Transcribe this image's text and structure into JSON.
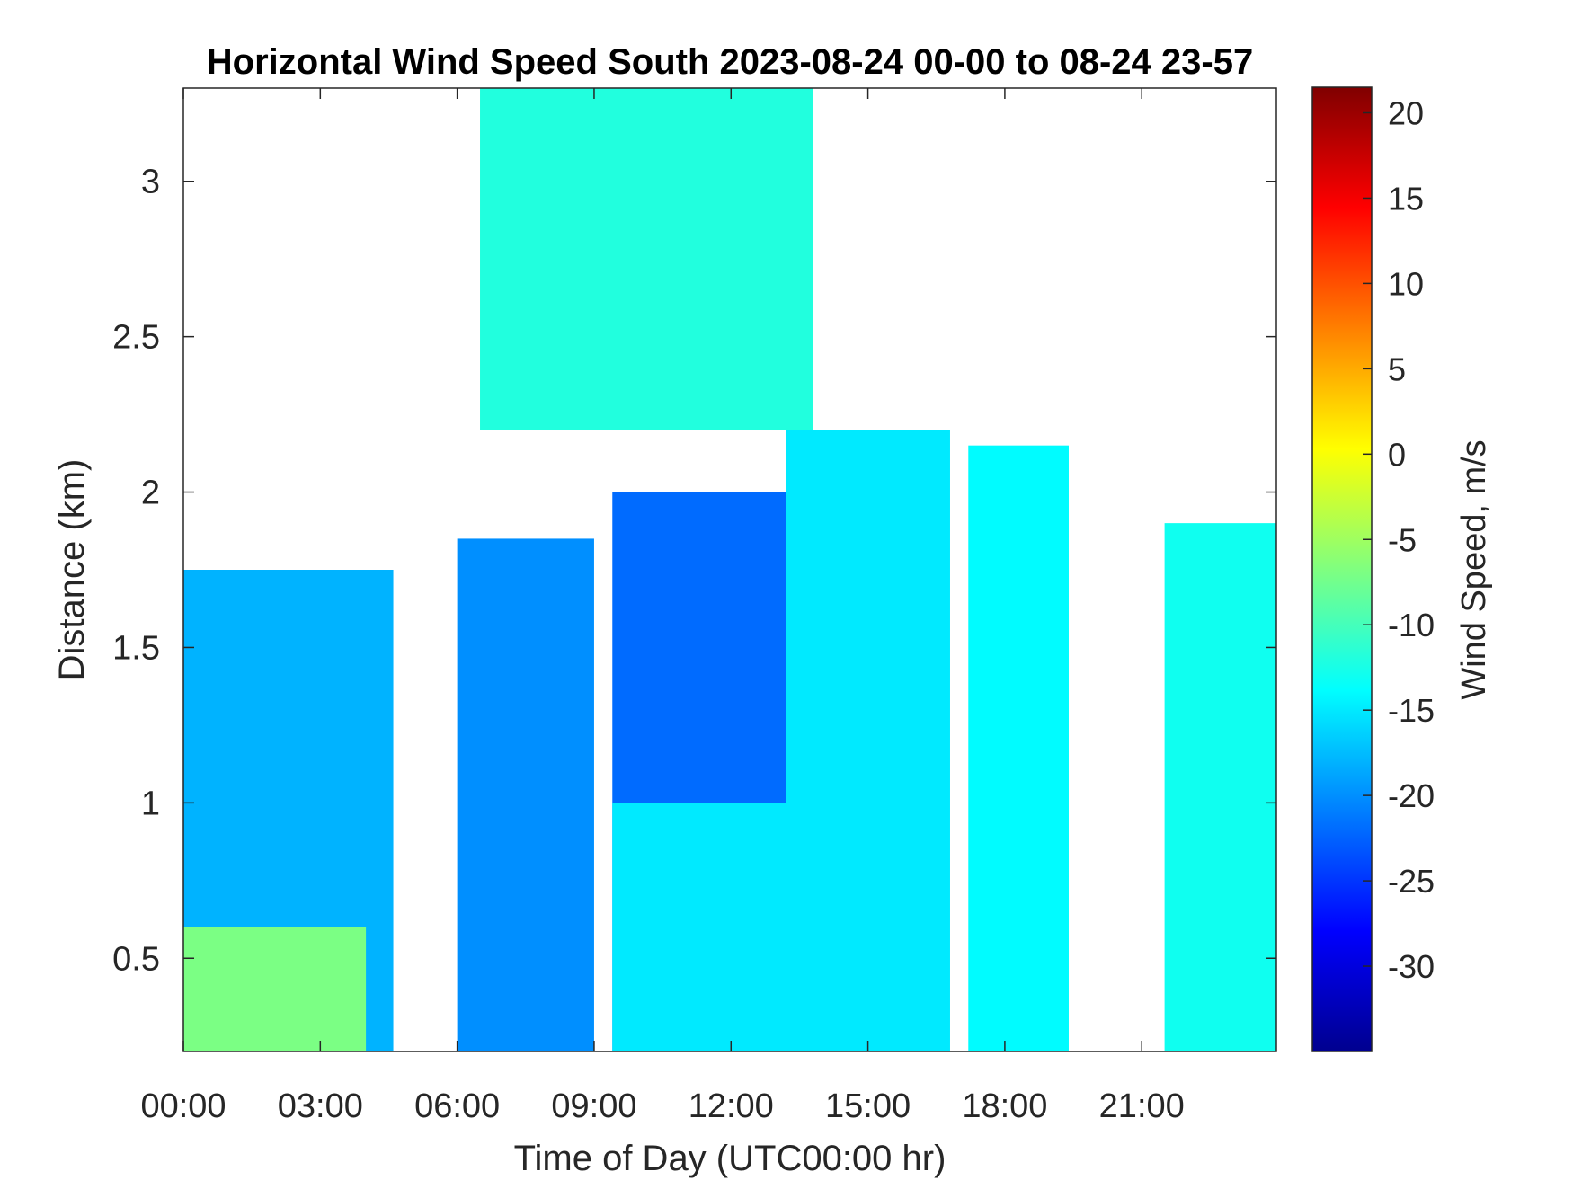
{
  "chart_data": {
    "type": "heatmap",
    "title": "Horizontal Wind Speed South 2023-08-24 00-00 to 08-24 23-57",
    "xlabel": "Time of Day (UTC00:00 hr)",
    "ylabel": "Distance (km)",
    "colorbar_label": "Wind Speed, m/s",
    "colormap": "jet",
    "x_unit": "hour of day",
    "xlim": [
      0,
      23.95
    ],
    "ylim": [
      0.2,
      3.3
    ],
    "clim": [
      -35,
      21.5
    ],
    "x_ticks": [
      {
        "value": 0,
        "label": "00:00"
      },
      {
        "value": 3,
        "label": "03:00"
      },
      {
        "value": 6,
        "label": "06:00"
      },
      {
        "value": 9,
        "label": "09:00"
      },
      {
        "value": 12,
        "label": "12:00"
      },
      {
        "value": 15,
        "label": "15:00"
      },
      {
        "value": 18,
        "label": "18:00"
      },
      {
        "value": 21,
        "label": "21:00"
      }
    ],
    "y_ticks": [
      {
        "value": 0.5,
        "label": "0.5"
      },
      {
        "value": 1,
        "label": "1"
      },
      {
        "value": 1.5,
        "label": "1.5"
      },
      {
        "value": 2,
        "label": "2"
      },
      {
        "value": 2.5,
        "label": "2.5"
      },
      {
        "value": 3,
        "label": "3"
      }
    ],
    "colorbar_ticks": [
      {
        "value": 20,
        "label": "20"
      },
      {
        "value": 15,
        "label": "15"
      },
      {
        "value": 10,
        "label": "10"
      },
      {
        "value": 5,
        "label": "5"
      },
      {
        "value": 0,
        "label": "0"
      },
      {
        "value": -5,
        "label": "-5"
      },
      {
        "value": -10,
        "label": "-10"
      },
      {
        "value": -15,
        "label": "-15"
      },
      {
        "value": -20,
        "label": "-20"
      },
      {
        "value": -25,
        "label": "-25"
      },
      {
        "value": -30,
        "label": "-30"
      }
    ],
    "regions": [
      {
        "x": [
          0.0,
          4.6
        ],
        "y": [
          0.2,
          1.75
        ],
        "value": -18
      },
      {
        "x": [
          0.0,
          4.0
        ],
        "y": [
          0.2,
          0.6
        ],
        "value": -7
      },
      {
        "x": [
          6.0,
          9.0
        ],
        "y": [
          0.2,
          1.85
        ],
        "value": -20
      },
      {
        "x": [
          9.4,
          13.2
        ],
        "y": [
          0.2,
          2.0
        ],
        "value": -22
      },
      {
        "x": [
          9.4,
          13.2
        ],
        "y": [
          0.2,
          1.0
        ],
        "value": -15
      },
      {
        "x": [
          13.2,
          16.8
        ],
        "y": [
          0.2,
          2.2
        ],
        "value": -15
      },
      {
        "x": [
          17.2,
          19.4
        ],
        "y": [
          0.2,
          2.15
        ],
        "value": -14
      },
      {
        "x": [
          21.5,
          23.95
        ],
        "y": [
          0.2,
          1.9
        ],
        "value": -13
      },
      {
        "x": [
          6.5,
          13.8
        ],
        "y": [
          2.2,
          3.3
        ],
        "value": -12
      }
    ]
  }
}
